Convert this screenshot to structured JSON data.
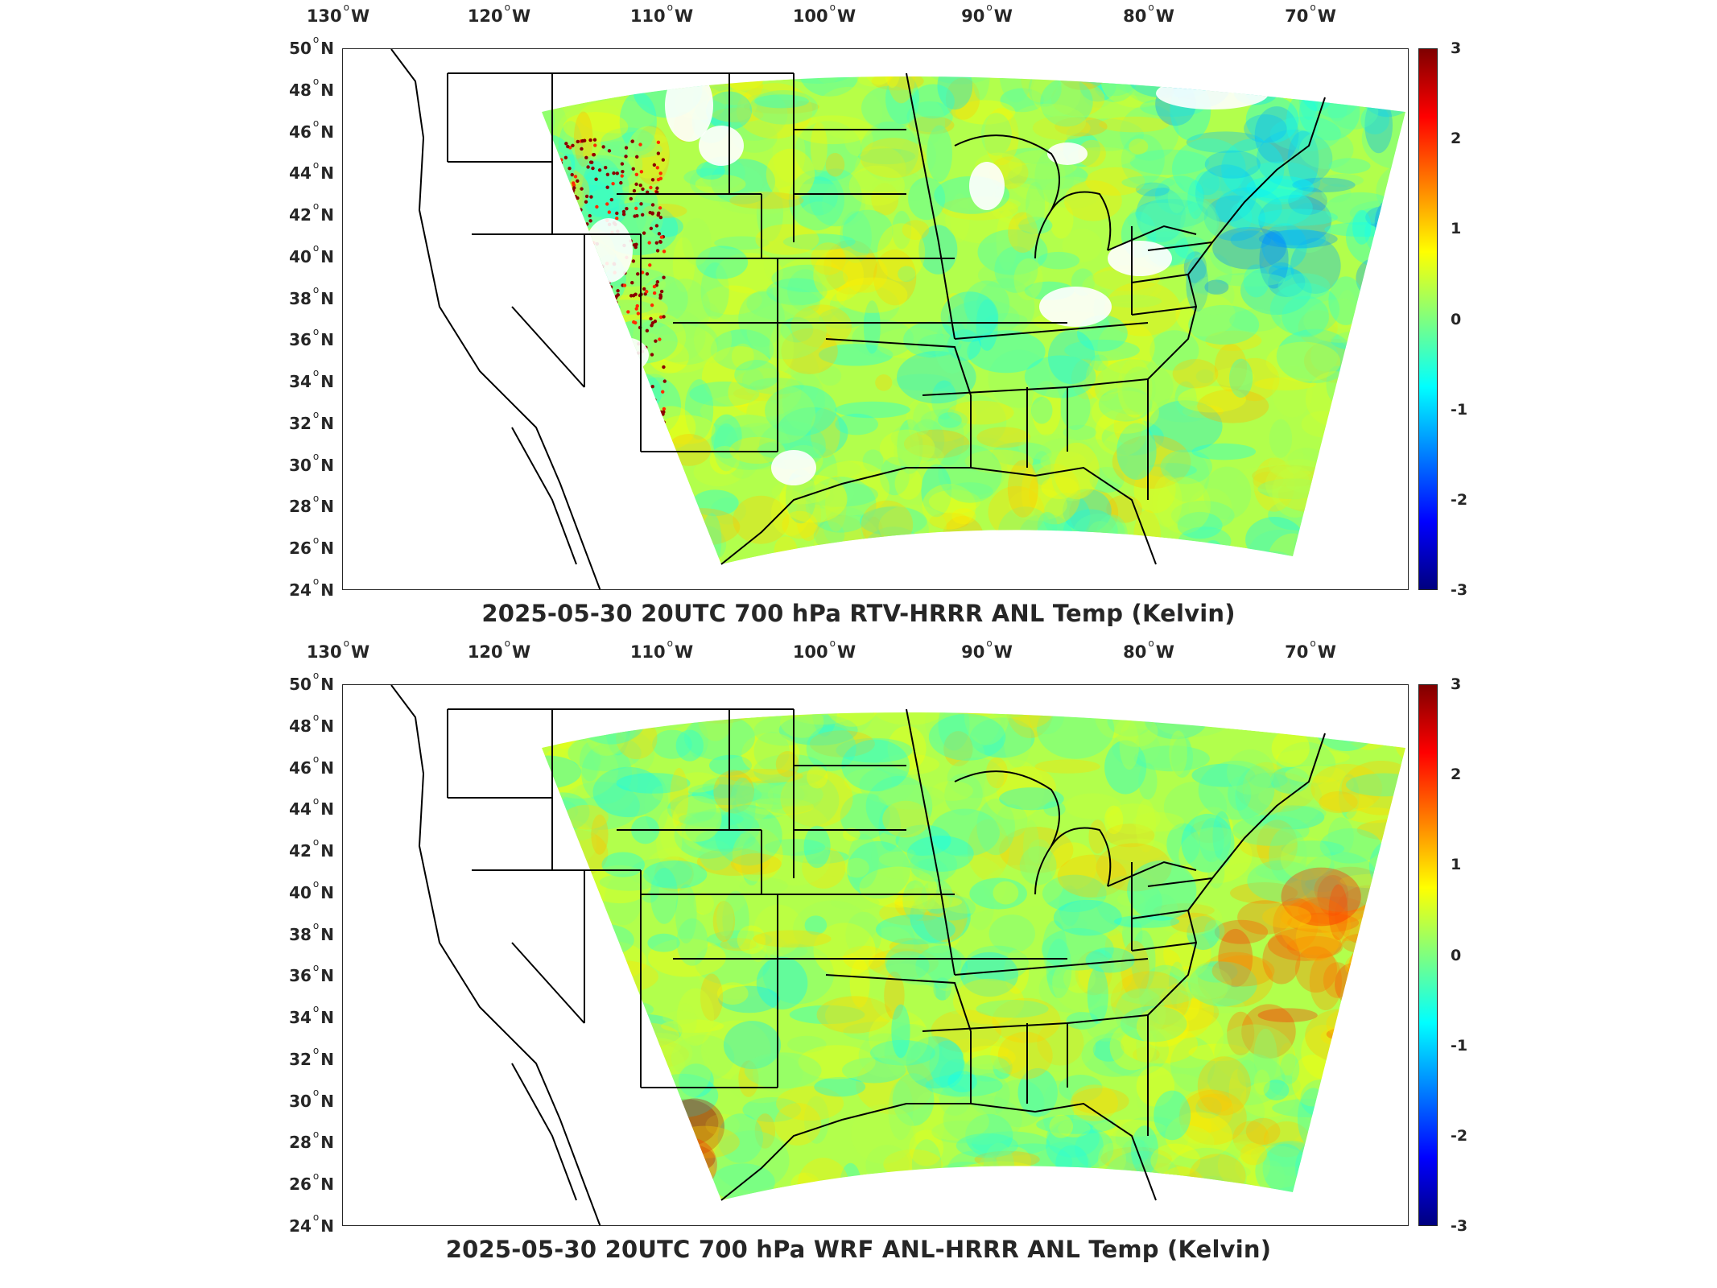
{
  "colorbar": {
    "colors": [
      "#00007f",
      "#0000ff",
      "#007fff",
      "#00ffff",
      "#7fff7f",
      "#ffff00",
      "#ff7f00",
      "#ff0000",
      "#7f0000"
    ],
    "ticks": [
      "3",
      "2",
      "1",
      "0",
      "-1",
      "-2",
      "-3"
    ]
  },
  "axes": {
    "lon_ticks": [
      {
        "deg": "130",
        "hem": "W"
      },
      {
        "deg": "120",
        "hem": "W"
      },
      {
        "deg": "110",
        "hem": "W"
      },
      {
        "deg": "100",
        "hem": "W"
      },
      {
        "deg": "90",
        "hem": "W"
      },
      {
        "deg": "80",
        "hem": "W"
      },
      {
        "deg": "70",
        "hem": "W"
      }
    ],
    "lat_ticks": [
      {
        "deg": "50",
        "hem": "N"
      },
      {
        "deg": "48",
        "hem": "N"
      },
      {
        "deg": "46",
        "hem": "N"
      },
      {
        "deg": "44",
        "hem": "N"
      },
      {
        "deg": "42",
        "hem": "N"
      },
      {
        "deg": "40",
        "hem": "N"
      },
      {
        "deg": "38",
        "hem": "N"
      },
      {
        "deg": "36",
        "hem": "N"
      },
      {
        "deg": "34",
        "hem": "N"
      },
      {
        "deg": "32",
        "hem": "N"
      },
      {
        "deg": "30",
        "hem": "N"
      },
      {
        "deg": "28",
        "hem": "N"
      },
      {
        "deg": "26",
        "hem": "N"
      },
      {
        "deg": "24",
        "hem": "N"
      }
    ]
  },
  "panels": [
    {
      "title": "2025-05-30 20UTC 700 hPa RTV-HRRR ANL Temp (Kelvin)",
      "colorbar_range": [
        -3,
        3
      ],
      "field": "rtv"
    },
    {
      "title": "2025-05-30 20UTC 700 hPa WRF ANL-HRRR ANL Temp (Kelvin)",
      "colorbar_range": [
        -3,
        3
      ],
      "field": "wrf"
    }
  ]
}
